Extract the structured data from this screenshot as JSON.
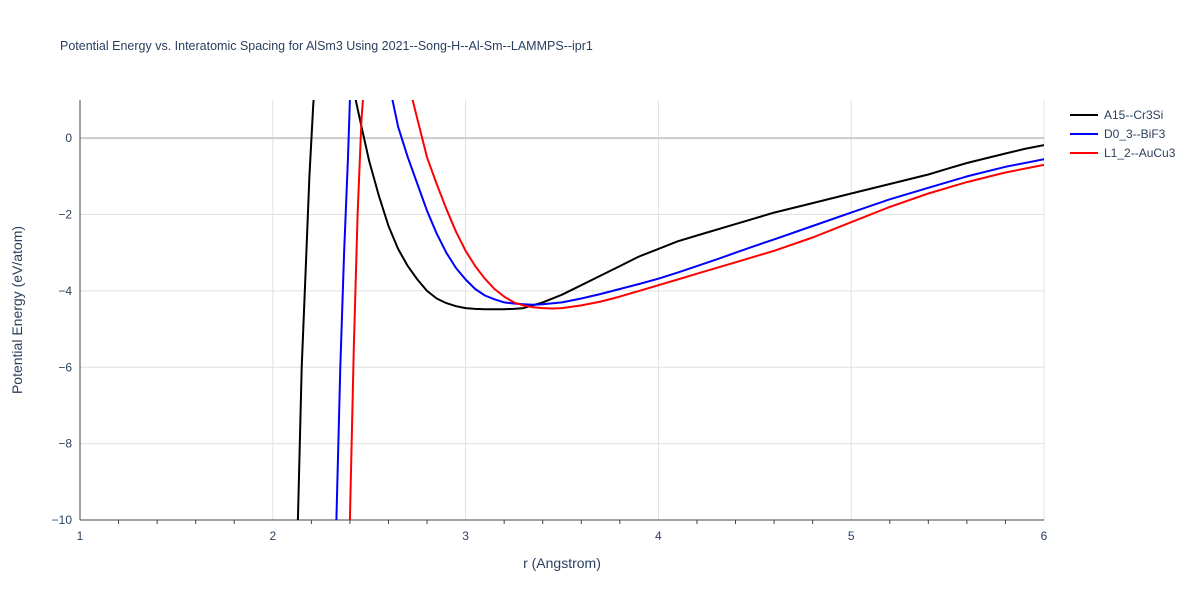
{
  "chart_data": {
    "type": "line",
    "title": "Potential Energy vs. Interatomic Spacing for AlSm3 Using 2021--Song-H--Al-Sm--LAMMPS--ipr1",
    "xlabel": "r (Angstrom)",
    "ylabel": "Potential Energy (eV/atom)",
    "xlim": [
      1,
      6
    ],
    "ylim": [
      -10,
      1
    ],
    "x_ticks": [
      "1",
      "2",
      "3",
      "4",
      "5",
      "6"
    ],
    "y_ticks": [
      "−10",
      "−8",
      "−6",
      "−4",
      "−2",
      "0"
    ],
    "grid": true,
    "legend_position": "top-right",
    "series": [
      {
        "name": "A15--Cr3Si",
        "color": "#000000",
        "x": [
          2.13,
          2.15,
          2.17,
          2.19,
          2.21,
          2.23,
          2.35,
          2.4,
          2.43,
          2.46,
          2.5,
          2.55,
          2.6,
          2.65,
          2.7,
          2.75,
          2.8,
          2.85,
          2.9,
          2.95,
          3.0,
          3.05,
          3.1,
          3.15,
          3.2,
          3.25,
          3.3,
          3.4,
          3.5,
          3.6,
          3.7,
          3.8,
          3.9,
          4.0,
          4.1,
          4.2,
          4.4,
          4.6,
          4.8,
          5.0,
          5.2,
          5.4,
          5.5,
          5.6,
          5.8,
          5.9,
          6.0
        ],
        "y": [
          -10.0,
          -6.0,
          -3.5,
          -1.0,
          0.9,
          2.0,
          2.0,
          1.5,
          1.0,
          0.3,
          -0.6,
          -1.5,
          -2.3,
          -2.9,
          -3.35,
          -3.7,
          -4.0,
          -4.2,
          -4.32,
          -4.4,
          -4.45,
          -4.47,
          -4.48,
          -4.48,
          -4.48,
          -4.47,
          -4.45,
          -4.3,
          -4.1,
          -3.85,
          -3.6,
          -3.35,
          -3.1,
          -2.9,
          -2.7,
          -2.55,
          -2.25,
          -1.95,
          -1.7,
          -1.45,
          -1.2,
          -0.95,
          -0.8,
          -0.65,
          -0.4,
          -0.28,
          -0.18
        ]
      },
      {
        "name": "D0_3--BiF3",
        "color": "#0000ff",
        "x": [
          2.33,
          2.35,
          2.37,
          2.39,
          2.4,
          2.42,
          2.5,
          2.6,
          2.65,
          2.7,
          2.75,
          2.8,
          2.85,
          2.9,
          2.95,
          3.0,
          3.05,
          3.1,
          3.15,
          3.2,
          3.25,
          3.3,
          3.35,
          3.4,
          3.5,
          3.6,
          3.7,
          3.8,
          3.9,
          4.0,
          4.1,
          4.2,
          4.3,
          4.4,
          4.5,
          4.6,
          4.8,
          5.0,
          5.2,
          5.4,
          5.6,
          5.8,
          6.0
        ],
        "y": [
          -10.0,
          -6.0,
          -3.0,
          -0.5,
          1.0,
          2.0,
          2.0,
          1.5,
          0.3,
          -0.5,
          -1.2,
          -1.9,
          -2.5,
          -3.0,
          -3.4,
          -3.7,
          -3.95,
          -4.12,
          -4.22,
          -4.3,
          -4.33,
          -4.35,
          -4.36,
          -4.35,
          -4.3,
          -4.2,
          -4.08,
          -3.95,
          -3.82,
          -3.68,
          -3.52,
          -3.35,
          -3.18,
          -3.0,
          -2.82,
          -2.65,
          -2.3,
          -1.95,
          -1.6,
          -1.3,
          -1.0,
          -0.75,
          -0.55
        ]
      },
      {
        "name": "L1_2--AuCu3",
        "color": "#ff0000",
        "x": [
          2.4,
          2.42,
          2.44,
          2.46,
          2.48,
          2.5,
          2.6,
          2.7,
          2.75,
          2.8,
          2.85,
          2.9,
          2.95,
          3.0,
          3.05,
          3.1,
          3.15,
          3.2,
          3.25,
          3.3,
          3.35,
          3.4,
          3.45,
          3.5,
          3.6,
          3.7,
          3.8,
          3.9,
          4.0,
          4.1,
          4.2,
          4.4,
          4.6,
          4.8,
          5.0,
          5.2,
          5.4,
          5.6,
          5.8,
          6.0
        ],
        "y": [
          -10.0,
          -5.5,
          -2.0,
          0.5,
          1.8,
          2.0,
          2.0,
          1.5,
          0.5,
          -0.5,
          -1.2,
          -1.85,
          -2.45,
          -2.95,
          -3.35,
          -3.68,
          -3.95,
          -4.15,
          -4.3,
          -4.38,
          -4.43,
          -4.45,
          -4.46,
          -4.45,
          -4.38,
          -4.28,
          -4.15,
          -4.0,
          -3.85,
          -3.7,
          -3.55,
          -3.25,
          -2.95,
          -2.6,
          -2.2,
          -1.8,
          -1.45,
          -1.15,
          -0.9,
          -0.7
        ]
      }
    ]
  }
}
